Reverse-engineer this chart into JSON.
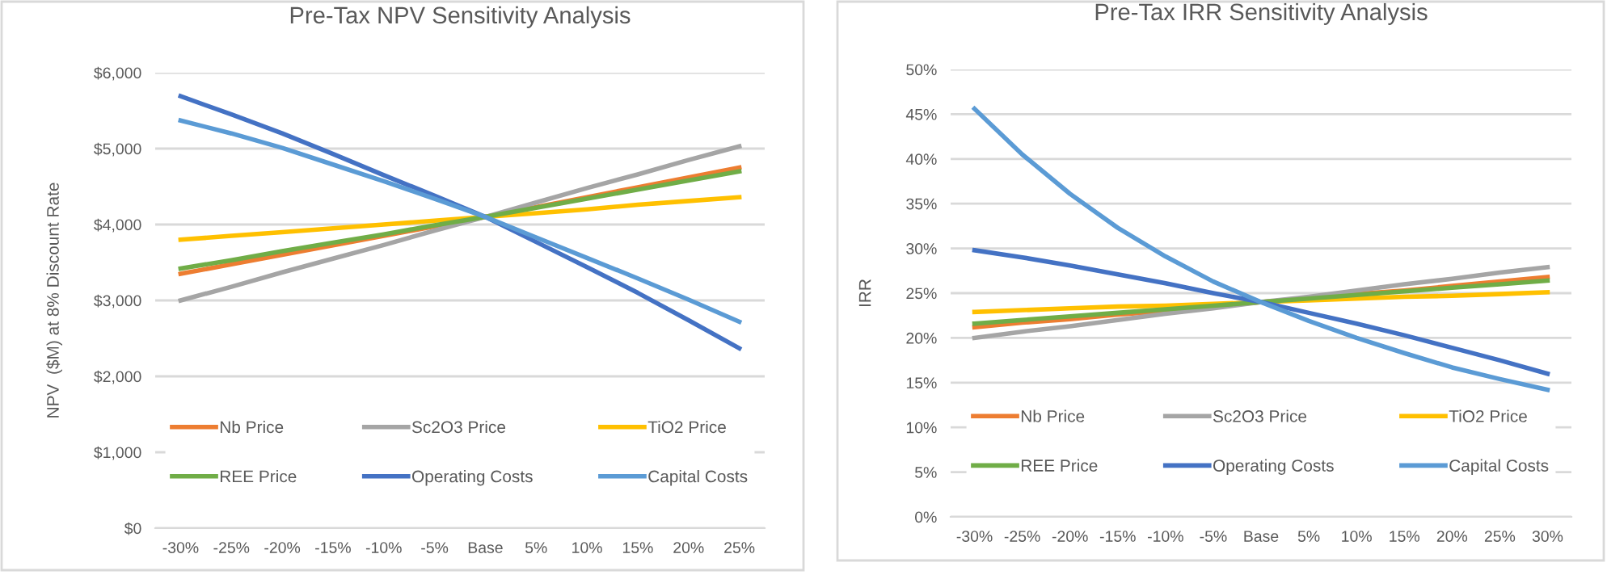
{
  "chart_data": [
    {
      "type": "line",
      "title": "Pre-Tax NPV Sensitivity Analysis",
      "ylabel": "NPV  ($M) at 8% Discount Rate",
      "categories": [
        "-30%",
        "-25%",
        "-20%",
        "-15%",
        "-10%",
        "-5%",
        "Base",
        "5%",
        "10%",
        "15%",
        "20%",
        "25%"
      ],
      "series": [
        {
          "name": "Nb Price",
          "color": "#ed7d31",
          "values": [
            3350,
            3475,
            3600,
            3725,
            3850,
            3975,
            4100,
            4230,
            4360,
            4490,
            4620,
            4750
          ]
        },
        {
          "name": "Sc2O3 Price",
          "color": "#a5a5a5",
          "values": [
            3000,
            3180,
            3370,
            3550,
            3730,
            3920,
            4100,
            4290,
            4480,
            4660,
            4850,
            5030
          ]
        },
        {
          "name": "TiO2 Price",
          "color": "#ffc000",
          "values": [
            3800,
            3850,
            3900,
            3950,
            4000,
            4050,
            4100,
            4150,
            4200,
            4260,
            4310,
            4360
          ]
        },
        {
          "name": "REE Price",
          "color": "#70ad47",
          "values": [
            3420,
            3530,
            3650,
            3760,
            3870,
            3990,
            4100,
            4220,
            4340,
            4460,
            4580,
            4700
          ]
        },
        {
          "name": "Operating Costs",
          "color": "#4472c4",
          "values": [
            5690,
            5450,
            5200,
            4930,
            4650,
            4380,
            4100,
            3770,
            3440,
            3100,
            2740,
            2370
          ]
        },
        {
          "name": "Capital Costs",
          "color": "#5b9bd5",
          "values": [
            5370,
            5200,
            5010,
            4790,
            4570,
            4340,
            4100,
            3830,
            3560,
            3290,
            3010,
            2720
          ]
        }
      ],
      "ylim": [
        0,
        6000
      ],
      "yticks": [
        {
          "value": 0,
          "label": "$0"
        },
        {
          "value": 1000,
          "label": "$1,000"
        },
        {
          "value": 2000,
          "label": "$2,000"
        },
        {
          "value": 3000,
          "label": "$3,000"
        },
        {
          "value": 4000,
          "label": "$4,000"
        },
        {
          "value": 5000,
          "label": "$5,000"
        },
        {
          "value": 6000,
          "label": "$6,000"
        }
      ],
      "grid": "y",
      "legend": "bottom",
      "marker": "none",
      "line_style": "solid"
    },
    {
      "type": "line",
      "title": "Pre-Tax IRR Sensitivity Analysis",
      "ylabel": "IRR",
      "categories": [
        "-30%",
        "-25%",
        "-20%",
        "-15%",
        "-10%",
        "-5%",
        "Base",
        "5%",
        "10%",
        "15%",
        "20%",
        "25%",
        "30%"
      ],
      "series": [
        {
          "name": "Nb Price",
          "color": "#ed7d31",
          "values": [
            21.2,
            21.7,
            22.1,
            22.6,
            23.0,
            23.5,
            24.0,
            24.4,
            24.9,
            25.3,
            25.8,
            26.3,
            26.8
          ]
        },
        {
          "name": "Sc2O3 Price",
          "color": "#a5a5a5",
          "values": [
            20.0,
            20.7,
            21.3,
            22.0,
            22.7,
            23.3,
            24.0,
            24.6,
            25.3,
            26.0,
            26.6,
            27.3,
            27.9
          ]
        },
        {
          "name": "TiO2 Price",
          "color": "#ffc000",
          "values": [
            22.9,
            23.1,
            23.3,
            23.5,
            23.6,
            23.8,
            24.0,
            24.2,
            24.4,
            24.6,
            24.7,
            24.9,
            25.1
          ]
        },
        {
          "name": "REE Price",
          "color": "#70ad47",
          "values": [
            21.6,
            22.0,
            22.4,
            22.8,
            23.2,
            23.6,
            24.0,
            24.4,
            24.8,
            25.2,
            25.6,
            26.0,
            26.4
          ]
        },
        {
          "name": "Operating Costs",
          "color": "#4472c4",
          "values": [
            29.8,
            29.0,
            28.1,
            27.1,
            26.1,
            25.0,
            24.0,
            22.8,
            21.6,
            20.3,
            18.9,
            17.5,
            16.0
          ]
        },
        {
          "name": "Capital Costs",
          "color": "#5b9bd5",
          "values": [
            45.6,
            40.5,
            36.1,
            32.3,
            29.1,
            26.3,
            24.0,
            21.9,
            20.0,
            18.3,
            16.7,
            15.4,
            14.2
          ]
        }
      ],
      "ylim": [
        0,
        50
      ],
      "yticks": [
        {
          "value": 0,
          "label": "0%"
        },
        {
          "value": 5,
          "label": "5%"
        },
        {
          "value": 10,
          "label": "10%"
        },
        {
          "value": 15,
          "label": "15%"
        },
        {
          "value": 20,
          "label": "20%"
        },
        {
          "value": 25,
          "label": "25%"
        },
        {
          "value": 30,
          "label": "30%"
        },
        {
          "value": 35,
          "label": "35%"
        },
        {
          "value": 40,
          "label": "40%"
        },
        {
          "value": 45,
          "label": "45%"
        },
        {
          "value": 50,
          "label": "50%"
        }
      ],
      "grid": "y",
      "legend": "bottom",
      "marker": "none",
      "line_style": "solid"
    }
  ]
}
